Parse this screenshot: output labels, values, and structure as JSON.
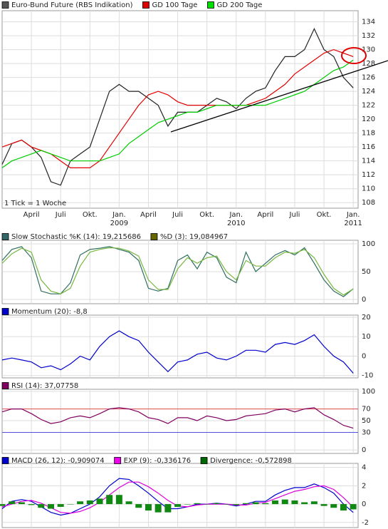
{
  "chart_data": [
    {
      "type": "line",
      "note": "1 Tick = 1 Woche",
      "x": [
        0,
        1,
        2,
        3,
        4,
        5,
        6,
        7,
        8,
        9,
        10,
        11,
        12,
        13,
        14,
        15,
        16,
        17,
        18,
        19,
        20,
        21,
        22,
        23,
        24,
        25,
        26,
        27,
        28,
        29,
        30,
        31,
        32,
        33,
        34,
        35,
        36
      ],
      "xlim": [
        0,
        36.5
      ],
      "xticks": [
        {
          "value": 3,
          "label": "April"
        },
        {
          "value": 6,
          "label": "Juli"
        },
        {
          "value": 9,
          "label": "Okt."
        },
        {
          "value": 12,
          "label": "Jan. 2009"
        },
        {
          "value": 15,
          "label": "April"
        },
        {
          "value": 18,
          "label": "Juli"
        },
        {
          "value": 21,
          "label": "Okt."
        },
        {
          "value": 24,
          "label": "Jan. 2010"
        },
        {
          "value": 27,
          "label": "April"
        },
        {
          "value": 30,
          "label": "Juli"
        },
        {
          "value": 33,
          "label": "Okt."
        },
        {
          "value": 36,
          "label": "Jan. 2011"
        }
      ],
      "ylim": [
        107.2,
        135.6
      ],
      "yticks": [
        108,
        110,
        112,
        114,
        116,
        118,
        120,
        122,
        124,
        126,
        128,
        130,
        132,
        134
      ],
      "grid": true,
      "series": [
        {
          "name": "Euro-Bund Future (RBS Indikation)",
          "color": "#222222",
          "legend_color": "#555555",
          "values": [
            113.5,
            116.5,
            117,
            116,
            114.5,
            111,
            110.5,
            114,
            115,
            116,
            120,
            124,
            125,
            124,
            124,
            123,
            122,
            119,
            121,
            121,
            121,
            122,
            123,
            122.5,
            121.5,
            123,
            124,
            124.5,
            127,
            129,
            129,
            130,
            133,
            130,
            129,
            126,
            124.5
          ]
        },
        {
          "name": "GD 100 Tage",
          "color": "#e00000",
          "legend_color": "#e00000",
          "values": [
            116,
            116.5,
            117,
            116,
            115.5,
            115,
            114,
            113,
            113,
            113,
            114,
            116,
            118,
            120,
            122,
            123.5,
            124,
            123.5,
            122.5,
            122,
            122,
            122,
            122,
            122,
            122,
            122,
            122.5,
            123,
            124,
            125,
            126.5,
            127.5,
            128.5,
            129.5,
            130,
            129.5,
            129
          ]
        },
        {
          "name": "GD 200 Tage",
          "color": "#00cc00",
          "legend_color": "#00dd00",
          "values": [
            113,
            114,
            114.5,
            115,
            115.5,
            115,
            114.5,
            114,
            114,
            114,
            114,
            114.5,
            115,
            116.5,
            117.5,
            118.5,
            119.5,
            120,
            120.5,
            121,
            121,
            121.5,
            122,
            122,
            122,
            122,
            122,
            122,
            122.5,
            123,
            123.5,
            124,
            125,
            126,
            127,
            127.5,
            128.5
          ]
        }
      ]
    },
    {
      "type": "line",
      "ylim": [
        -7.7,
        106.4
      ],
      "yticks": [
        0,
        50,
        100
      ],
      "grid": true,
      "series": [
        {
          "name": "Slow Stochastic %K (14): 19,215686",
          "color": "#2f6f5f",
          "legend_color": "#336666",
          "values": [
            70,
            90,
            95,
            75,
            15,
            10,
            10,
            30,
            80,
            90,
            92,
            95,
            90,
            85,
            70,
            20,
            15,
            20,
            70,
            80,
            55,
            85,
            75,
            40,
            30,
            85,
            50,
            65,
            80,
            88,
            80,
            93,
            65,
            35,
            15,
            5,
            19.2
          ]
        },
        {
          "name": "%D (3): 19,084967",
          "color": "#77b840",
          "legend_color": "#666600",
          "values": [
            65,
            82,
            92,
            85,
            35,
            15,
            10,
            20,
            60,
            85,
            90,
            93,
            92,
            87,
            78,
            35,
            18,
            18,
            55,
            75,
            65,
            75,
            78,
            50,
            35,
            70,
            60,
            60,
            75,
            85,
            83,
            90,
            75,
            45,
            20,
            8,
            19.1
          ]
        }
      ]
    },
    {
      "type": "line",
      "ylim": [
        -11.2,
        21.1
      ],
      "yticks": [
        -10,
        0,
        10,
        20
      ],
      "grid": true,
      "series": [
        {
          "name": "Momentum (20): -8,8",
          "color": "#0000cc",
          "legend_color": "#0000cc",
          "values": [
            -2,
            -1,
            -2,
            -3,
            -6,
            -5,
            -7,
            -4,
            0,
            -2,
            5,
            10,
            13,
            10,
            8,
            2,
            -3,
            -8,
            -3,
            -2,
            1,
            2,
            -1,
            -2,
            0,
            3,
            3,
            2,
            6,
            7,
            6,
            8,
            11,
            5,
            0,
            -3,
            -8.8
          ]
        }
      ]
    },
    {
      "type": "line",
      "ylim": [
        -6,
        103.6
      ],
      "yticks": [
        0,
        30,
        50,
        70,
        100
      ],
      "grid": true,
      "reference_lines": [
        {
          "value": 70,
          "color": "#e05050"
        },
        {
          "value": 30,
          "color": "#5050e0"
        }
      ],
      "series": [
        {
          "name": "RSI (14): 37,07758",
          "color": "#800060",
          "legend_color": "#800060",
          "values": [
            65,
            70,
            70,
            62,
            52,
            45,
            48,
            55,
            58,
            55,
            62,
            70,
            72,
            70,
            65,
            55,
            52,
            45,
            55,
            55,
            50,
            58,
            55,
            50,
            52,
            58,
            60,
            62,
            68,
            70,
            65,
            70,
            72,
            60,
            52,
            42,
            37.08
          ]
        }
      ]
    },
    {
      "type": "line",
      "ylim": [
        -2.56,
        4.44
      ],
      "yticks": [
        -2,
        0,
        2,
        4
      ],
      "grid": true,
      "series": [
        {
          "name": "MACD (26, 12): -0,909074",
          "color": "#0000cc",
          "legend_color": "#0000cc",
          "values": [
            -0.5,
            0.3,
            0.5,
            0.3,
            -0.3,
            -0.9,
            -1.2,
            -1,
            -0.5,
            0,
            0.8,
            2,
            2.8,
            2.7,
            2,
            1.2,
            0.3,
            -0.5,
            -0.5,
            -0.3,
            0,
            0,
            0.1,
            0,
            -0.2,
            0,
            0.3,
            0.3,
            1,
            1.5,
            1.8,
            1.8,
            2.2,
            1.8,
            1.2,
            0,
            -0.909074
          ]
        },
        {
          "name": "EXP (9): -0,336176",
          "color": "#dd00dd",
          "legend_color": "#ee00ee",
          "values": [
            -0.3,
            0,
            0.3,
            0.4,
            0.1,
            -0.4,
            -0.9,
            -1,
            -0.8,
            -0.4,
            0.2,
            1,
            1.8,
            2.4,
            2.4,
            1.9,
            1.2,
            0.4,
            -0.2,
            -0.3,
            -0.1,
            0,
            0,
            0,
            -0.1,
            -0.1,
            0.1,
            0.2,
            0.6,
            1,
            1.4,
            1.6,
            1.9,
            2,
            1.6,
            0.7,
            -0.336176
          ]
        },
        {
          "name": "Divergence: -0,572898",
          "type": "bar",
          "color": "#118811",
          "legend_color": "#006600",
          "values": [
            -0.2,
            0.3,
            0.2,
            -0.1,
            -0.4,
            -0.5,
            -0.3,
            0,
            0.3,
            0.4,
            0.6,
            1,
            1,
            0.3,
            -0.4,
            -0.7,
            -0.9,
            -0.9,
            -0.3,
            0,
            0.1,
            0,
            0.1,
            0,
            -0.1,
            0.1,
            0.2,
            0.1,
            0.4,
            0.5,
            0.4,
            0.2,
            0.3,
            -0.2,
            -0.4,
            -0.7,
            -0.572898
          ]
        }
      ]
    }
  ]
}
